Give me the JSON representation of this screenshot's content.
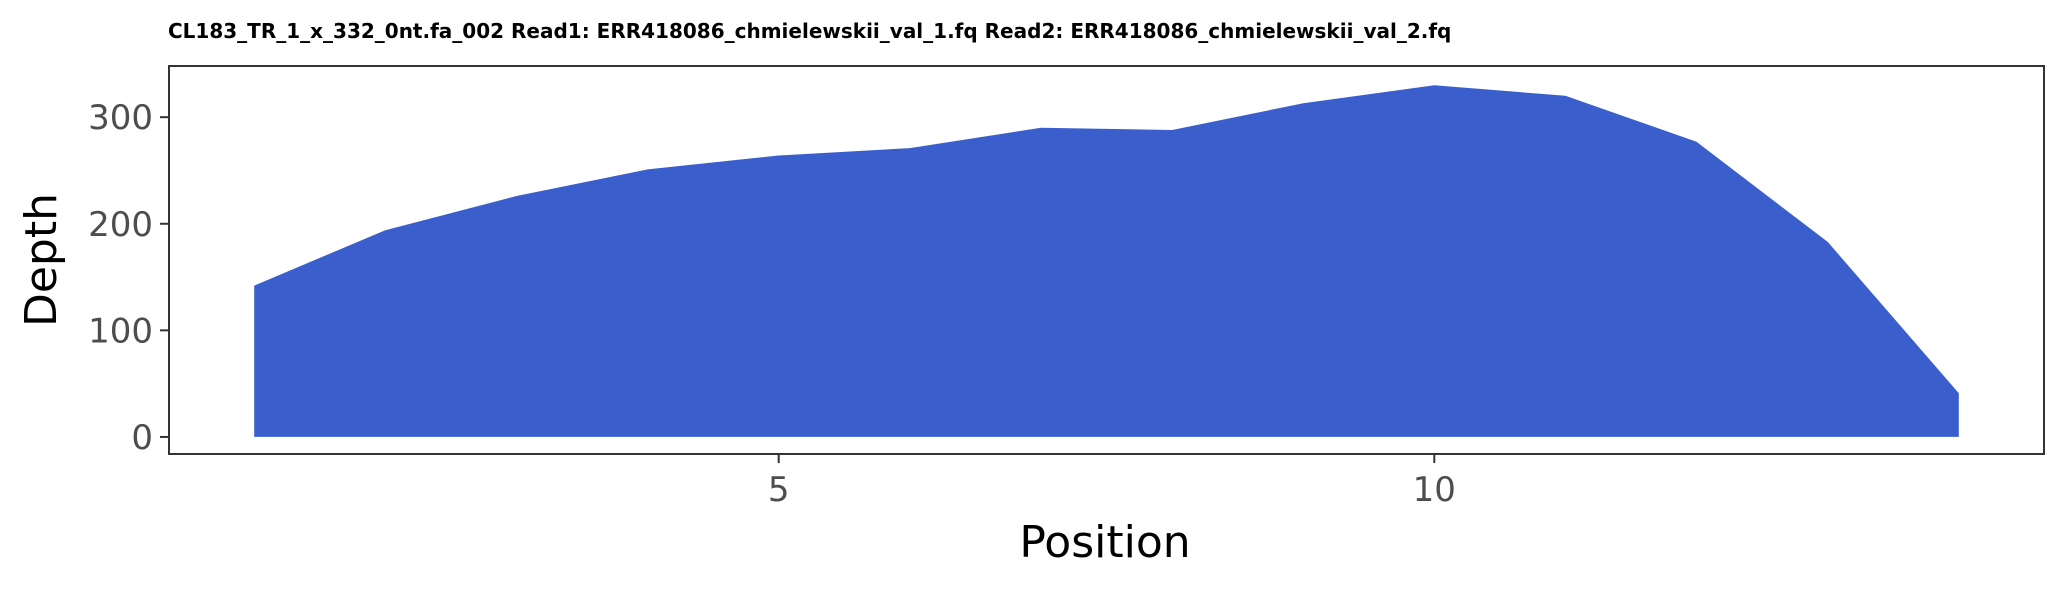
{
  "chart_data": {
    "type": "area",
    "title": "CL183_TR_1_x_332_0nt.fa_002 Read1: ERR418086_chmielewskii_val_1.fq Read2: ERR418086_chmielewskii_val_2.fq",
    "xlabel": "Position",
    "ylabel": "Depth",
    "x": [
      1,
      2,
      3,
      4,
      5,
      6,
      7,
      8,
      9,
      10,
      11,
      12,
      13,
      14
    ],
    "values": [
      142,
      194,
      226,
      251,
      264,
      271,
      290,
      288,
      313,
      330,
      320,
      277,
      183,
      41
    ],
    "xlim": [
      0.35,
      14.65
    ],
    "ylim": [
      -16,
      348
    ],
    "xticks": [
      5,
      10
    ],
    "xtick_labels": [
      "5",
      "10"
    ],
    "yticks": [
      0,
      100,
      200,
      300
    ],
    "ytick_labels": [
      "0",
      "100",
      "200",
      "300"
    ],
    "fill_color": "#3a5fcd",
    "grid": false,
    "legend": "none"
  }
}
